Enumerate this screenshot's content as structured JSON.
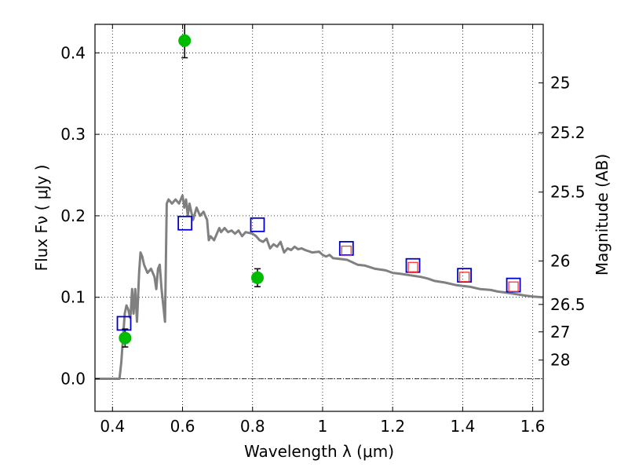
{
  "chart_data": {
    "type": "line",
    "xlabel": "Wavelength  λ (μm)",
    "ylabel": "Flux  Fν  ( μJy )",
    "y2label": "Magnitude (AB)",
    "xlim": [
      0.35,
      1.63
    ],
    "ylim": [
      -0.04,
      0.435
    ],
    "grid": true,
    "x_ticks": [
      0.4,
      0.6,
      0.8,
      1.0,
      1.2,
      1.4,
      1.6
    ],
    "x_tick_labels": [
      "0.4",
      "0.6",
      "0.8",
      "1",
      "1.2",
      "1.4",
      "1.6"
    ],
    "y_ticks": [
      0.0,
      0.1,
      0.2,
      0.3,
      0.4
    ],
    "y_tick_labels": [
      "0.0",
      "0.1",
      "0.2",
      "0.3",
      "0.4"
    ],
    "y2_ticks": [
      25,
      25.2,
      25.5,
      26,
      26.5,
      27,
      28
    ],
    "y2_tick_labels": [
      "25",
      "25.2",
      "25.5",
      "26",
      "26.5",
      "27",
      "28"
    ],
    "zero_line": true,
    "colors": {
      "model": "#808080",
      "model_points": "#0000cc",
      "filter_points": "#ff3333",
      "observed": "#00bb00",
      "errorbar": "#000000"
    },
    "series": [
      {
        "kind": "line",
        "x": [
          0.35,
          0.4,
          0.41,
          0.42,
          0.425,
          0.43,
          0.435,
          0.44,
          0.445,
          0.45,
          0.452,
          0.456,
          0.46,
          0.465,
          0.47,
          0.473,
          0.476,
          0.48,
          0.485,
          0.49,
          0.5,
          0.51,
          0.52,
          0.525,
          0.53,
          0.535,
          0.54,
          0.545,
          0.55,
          0.555,
          0.56,
          0.57,
          0.58,
          0.59,
          0.6,
          0.605,
          0.61,
          0.615,
          0.62,
          0.63,
          0.64,
          0.65,
          0.66,
          0.665,
          0.67,
          0.675,
          0.68,
          0.69,
          0.7,
          0.705,
          0.71,
          0.72,
          0.73,
          0.74,
          0.75,
          0.76,
          0.77,
          0.78,
          0.8,
          0.81,
          0.82,
          0.83,
          0.84,
          0.85,
          0.86,
          0.87,
          0.88,
          0.89,
          0.9,
          0.91,
          0.92,
          0.93,
          0.94,
          0.95,
          0.97,
          0.99,
          1.0,
          1.01,
          1.02,
          1.03,
          1.05,
          1.07,
          1.1,
          1.12,
          1.15,
          1.18,
          1.2,
          1.22,
          1.25,
          1.28,
          1.3,
          1.32,
          1.35,
          1.38,
          1.4,
          1.42,
          1.45,
          1.48,
          1.5,
          1.52,
          1.55,
          1.58,
          1.6,
          1.63
        ],
        "y": [
          0.0,
          0.0,
          0.0,
          0.0,
          0.02,
          0.05,
          0.08,
          0.09,
          0.085,
          0.075,
          0.08,
          0.11,
          0.08,
          0.11,
          0.07,
          0.1,
          0.13,
          0.155,
          0.15,
          0.14,
          0.13,
          0.135,
          0.125,
          0.11,
          0.135,
          0.14,
          0.11,
          0.09,
          0.07,
          0.215,
          0.22,
          0.215,
          0.22,
          0.215,
          0.225,
          0.21,
          0.22,
          0.2,
          0.215,
          0.195,
          0.21,
          0.2,
          0.205,
          0.2,
          0.195,
          0.17,
          0.175,
          0.17,
          0.18,
          0.185,
          0.18,
          0.185,
          0.18,
          0.182,
          0.178,
          0.182,
          0.175,
          0.18,
          0.178,
          0.175,
          0.17,
          0.168,
          0.172,
          0.16,
          0.165,
          0.162,
          0.168,
          0.155,
          0.16,
          0.158,
          0.162,
          0.159,
          0.16,
          0.158,
          0.155,
          0.156,
          0.152,
          0.15,
          0.152,
          0.148,
          0.147,
          0.146,
          0.14,
          0.139,
          0.135,
          0.133,
          0.13,
          0.129,
          0.127,
          0.125,
          0.123,
          0.12,
          0.118,
          0.115,
          0.114,
          0.113,
          0.11,
          0.109,
          0.107,
          0.106,
          0.104,
          0.102,
          0.101,
          0.1
        ]
      },
      {
        "kind": "open-square",
        "x": [
          0.433,
          0.607,
          0.814,
          1.068,
          1.258,
          1.405,
          1.545
        ],
        "y": [
          0.068,
          0.191,
          0.189,
          0.16,
          0.139,
          0.127,
          0.115
        ]
      },
      {
        "kind": "open-square-small",
        "x": [
          1.068,
          1.258,
          1.405,
          1.545
        ],
        "y": [
          0.157,
          0.137,
          0.125,
          0.113
        ]
      },
      {
        "kind": "point-with-errorbar",
        "x": [
          0.436,
          0.606,
          0.814
        ],
        "y": [
          0.05,
          0.415,
          0.124
        ],
        "yerr": [
          0.011,
          0.021,
          0.011
        ]
      }
    ]
  }
}
